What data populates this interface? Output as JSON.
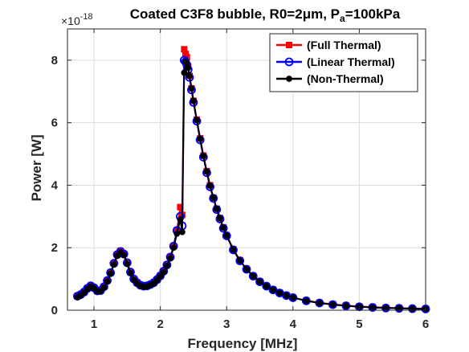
{
  "chart_data": {
    "type": "line",
    "title_parts": [
      "Coated C3F8 bubble, R0=2",
      "μ",
      "m, P",
      "a",
      "=100kPa"
    ],
    "xlabel": "Frequency [MHz]",
    "ylabel": "Power [W]",
    "y_multiplier": "×10",
    "y_multiplier_exp": "-18",
    "xlim": [
      0.6,
      6.0
    ],
    "ylim": [
      0,
      9
    ],
    "xticks": [
      1,
      2,
      3,
      4,
      5,
      6
    ],
    "yticks": [
      0,
      2,
      4,
      6,
      8
    ],
    "xtick_labels": [
      "1",
      "2",
      "3",
      "4",
      "5",
      "6"
    ],
    "ytick_labels": [
      "0",
      "2",
      "4",
      "6",
      "8"
    ],
    "grid": true,
    "legend_position": "top-right",
    "series": [
      {
        "name": "(Full Thermal)",
        "color": "#ff0000",
        "marker": "square",
        "x": [
          0.75,
          0.8,
          0.85,
          0.9,
          0.95,
          1.0,
          1.05,
          1.1,
          1.15,
          1.2,
          1.25,
          1.3,
          1.35,
          1.4,
          1.45,
          1.5,
          1.55,
          1.6,
          1.65,
          1.7,
          1.75,
          1.8,
          1.85,
          1.9,
          1.95,
          2.0,
          2.05,
          2.1,
          2.15,
          2.2,
          2.25,
          2.3,
          2.33,
          2.36,
          2.38,
          2.4,
          2.42,
          2.44,
          2.47,
          2.5,
          2.55,
          2.6,
          2.65,
          2.7,
          2.75,
          2.8,
          2.85,
          2.9,
          2.95,
          3.0,
          3.1,
          3.2,
          3.3,
          3.4,
          3.5,
          3.6,
          3.7,
          3.8,
          3.9,
          4.0,
          4.2,
          4.4,
          4.6,
          4.8,
          5.0,
          5.2,
          5.4,
          5.6,
          5.8,
          6.0
        ],
        "y": [
          0.45,
          0.5,
          0.58,
          0.7,
          0.78,
          0.72,
          0.62,
          0.63,
          0.75,
          0.95,
          1.2,
          1.5,
          1.78,
          1.9,
          1.8,
          1.52,
          1.22,
          1.0,
          0.88,
          0.8,
          0.77,
          0.78,
          0.82,
          0.88,
          0.98,
          1.1,
          1.25,
          1.45,
          1.7,
          2.05,
          2.55,
          3.3,
          3.05,
          8.35,
          8.2,
          8.1,
          7.8,
          7.5,
          7.1,
          6.7,
          6.1,
          5.5,
          4.95,
          4.45,
          4.0,
          3.6,
          3.25,
          2.95,
          2.65,
          2.4,
          1.95,
          1.6,
          1.32,
          1.1,
          0.92,
          0.78,
          0.66,
          0.56,
          0.48,
          0.41,
          0.31,
          0.24,
          0.19,
          0.15,
          0.12,
          0.1,
          0.08,
          0.07,
          0.06,
          0.05
        ]
      },
      {
        "name": "(Linear Thermal)",
        "color": "#0000ff",
        "marker": "circle",
        "x": [
          0.75,
          0.8,
          0.85,
          0.9,
          0.95,
          1.0,
          1.05,
          1.1,
          1.15,
          1.2,
          1.25,
          1.3,
          1.35,
          1.4,
          1.45,
          1.5,
          1.55,
          1.6,
          1.65,
          1.7,
          1.75,
          1.8,
          1.85,
          1.9,
          1.95,
          2.0,
          2.05,
          2.1,
          2.15,
          2.2,
          2.25,
          2.3,
          2.33,
          2.36,
          2.38,
          2.4,
          2.42,
          2.44,
          2.47,
          2.5,
          2.55,
          2.6,
          2.65,
          2.7,
          2.75,
          2.8,
          2.85,
          2.9,
          2.95,
          3.0,
          3.1,
          3.2,
          3.3,
          3.4,
          3.5,
          3.6,
          3.7,
          3.8,
          3.9,
          4.0,
          4.2,
          4.4,
          4.6,
          4.8,
          5.0,
          5.2,
          5.4,
          5.6,
          5.8,
          6.0
        ],
        "y": [
          0.45,
          0.5,
          0.58,
          0.7,
          0.78,
          0.72,
          0.62,
          0.63,
          0.75,
          0.95,
          1.2,
          1.5,
          1.78,
          1.88,
          1.8,
          1.52,
          1.22,
          1.0,
          0.88,
          0.8,
          0.77,
          0.78,
          0.82,
          0.88,
          0.98,
          1.1,
          1.25,
          1.45,
          1.7,
          2.05,
          2.55,
          3.0,
          2.7,
          8.0,
          7.95,
          7.85,
          7.7,
          7.45,
          7.05,
          6.65,
          6.05,
          5.45,
          4.9,
          4.4,
          3.95,
          3.58,
          3.22,
          2.92,
          2.62,
          2.38,
          1.93,
          1.58,
          1.31,
          1.09,
          0.91,
          0.77,
          0.65,
          0.55,
          0.47,
          0.4,
          0.3,
          0.23,
          0.18,
          0.14,
          0.11,
          0.09,
          0.07,
          0.06,
          0.05,
          0.04
        ]
      },
      {
        "name": "(Non-Thermal)",
        "color": "#000000",
        "marker": "dot",
        "x": [
          0.75,
          0.8,
          0.85,
          0.9,
          0.95,
          1.0,
          1.05,
          1.1,
          1.15,
          1.2,
          1.25,
          1.3,
          1.35,
          1.4,
          1.45,
          1.5,
          1.55,
          1.6,
          1.65,
          1.7,
          1.75,
          1.8,
          1.85,
          1.9,
          1.95,
          2.0,
          2.05,
          2.1,
          2.15,
          2.2,
          2.25,
          2.3,
          2.33,
          2.36,
          2.38,
          2.4,
          2.42,
          2.44,
          2.47,
          2.5,
          2.55,
          2.6,
          2.65,
          2.7,
          2.75,
          2.8,
          2.85,
          2.9,
          2.95,
          3.0,
          3.1,
          3.2,
          3.3,
          3.4,
          3.5,
          3.6,
          3.7,
          3.8,
          3.9,
          4.0,
          4.2,
          4.4,
          4.6,
          4.8,
          5.0,
          5.2,
          5.4,
          5.6,
          5.8,
          6.0
        ],
        "y": [
          0.42,
          0.48,
          0.56,
          0.68,
          0.76,
          0.7,
          0.6,
          0.61,
          0.73,
          0.92,
          1.17,
          1.46,
          1.74,
          1.85,
          1.76,
          1.48,
          1.19,
          0.97,
          0.85,
          0.78,
          0.75,
          0.76,
          0.8,
          0.86,
          0.96,
          1.08,
          1.22,
          1.42,
          1.66,
          2.0,
          2.45,
          2.9,
          2.5,
          7.6,
          7.95,
          7.9,
          7.75,
          7.5,
          7.1,
          6.7,
          6.08,
          5.48,
          4.93,
          4.43,
          3.98,
          3.6,
          3.24,
          2.94,
          2.64,
          2.39,
          1.94,
          1.59,
          1.31,
          1.09,
          0.91,
          0.77,
          0.65,
          0.55,
          0.47,
          0.4,
          0.3,
          0.23,
          0.18,
          0.14,
          0.11,
          0.09,
          0.07,
          0.06,
          0.05,
          0.04
        ]
      }
    ]
  }
}
